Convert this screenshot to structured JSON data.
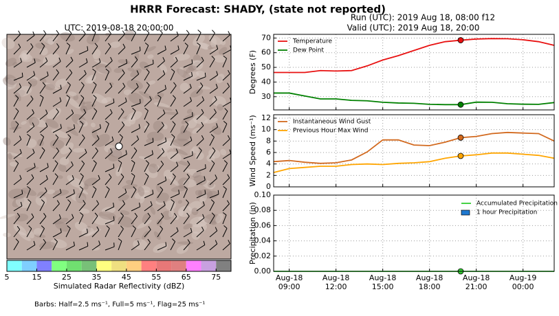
{
  "suptitle": "HRRR Forecast: SHADY, (state not reported)",
  "run": "Run (UTC): 2019 Aug 18, 08:00 f12",
  "valid": "Valid (UTC): 2019 Aug 18, 20:00",
  "map": {
    "title": "UTC: 2019-08-18 20:00:00",
    "colorbar": {
      "label": "Simulated Radar Reflectivity (dBZ)",
      "bounds": [
        5,
        10,
        15,
        20,
        25,
        30,
        35,
        40,
        45,
        50,
        55,
        60,
        65,
        70,
        75,
        80
      ],
      "colors": [
        "#80ffff",
        "#7fcfff",
        "#8080ff",
        "#80ff80",
        "#70df70",
        "#78c078",
        "#ffff80",
        "#efdf80",
        "#ffcf80",
        "#ff8080",
        "#e87878",
        "#df8080",
        "#ff80ff",
        "#c8a0e0",
        "#808080"
      ],
      "ticks": [
        5,
        15,
        25,
        35,
        45,
        55,
        65,
        75
      ]
    },
    "note": "Barbs: Half=2.5 ms⁻¹, Full=5 ms⁻¹, Flag=25 ms⁻¹"
  },
  "chart_data": [
    {
      "type": "line",
      "ylabel": "Degrees (F)",
      "legend": "upper left",
      "grid": true,
      "highlight_x": 20,
      "x": [
        8,
        9,
        10,
        11,
        12,
        13,
        14,
        15,
        16,
        17,
        18,
        19,
        20,
        21,
        22,
        23,
        24,
        25,
        26
      ],
      "xlim": [
        8,
        26
      ],
      "ylim": [
        21,
        72.5
      ],
      "yticks": [
        30,
        40,
        50,
        60,
        70
      ],
      "series": [
        {
          "name": "Temperature",
          "color": "#e81010",
          "values": [
            46.5,
            46.5,
            46.5,
            47.8,
            47.5,
            47.8,
            51,
            55,
            58,
            61.5,
            65,
            67.5,
            68.5,
            69.3,
            69.6,
            69.5,
            68.8,
            67.5,
            65
          ]
        },
        {
          "name": "Dew Point",
          "color": "#008000",
          "values": [
            32.5,
            32.5,
            30.5,
            28.5,
            28.5,
            27.5,
            27.2,
            26.2,
            25.7,
            25.5,
            24.8,
            24.6,
            24.6,
            26.3,
            26.2,
            25.2,
            24.9,
            24.8,
            26
          ]
        }
      ]
    },
    {
      "type": "line",
      "ylabel": "Wind Speed (ms⁻¹)",
      "legend": "upper left",
      "grid": true,
      "highlight_x": 20,
      "x": [
        8,
        9,
        10,
        11,
        12,
        13,
        14,
        15,
        16,
        17,
        18,
        19,
        20,
        21,
        22,
        23,
        24,
        25,
        26
      ],
      "xlim": [
        8,
        26
      ],
      "ylim": [
        0,
        12.6
      ],
      "yticks": [
        0,
        2,
        4,
        6,
        8,
        10,
        12
      ],
      "series": [
        {
          "name": "Instantaneous Wind Gust",
          "color": "#d2691e",
          "values": [
            4.4,
            4.6,
            4.3,
            4.1,
            4.2,
            4.7,
            6.1,
            8.2,
            8.2,
            7.3,
            7.2,
            7.8,
            8.6,
            8.8,
            9.3,
            9.5,
            9.4,
            9.3,
            8.0
          ]
        },
        {
          "name": "Previous Hour Max Wind",
          "color": "#ffa500",
          "values": [
            2.5,
            3.2,
            3.4,
            3.6,
            3.6,
            3.9,
            4.0,
            3.9,
            4.1,
            4.2,
            4.4,
            5.0,
            5.4,
            5.6,
            5.9,
            5.9,
            5.7,
            5.5,
            5.0
          ]
        }
      ]
    },
    {
      "type": "line",
      "ylabel": "Precipitation (in)",
      "legend": "upper right",
      "grid": true,
      "highlight_x": 20,
      "x": [
        8,
        9,
        10,
        11,
        12,
        13,
        14,
        15,
        16,
        17,
        18,
        19,
        20,
        21,
        22,
        23,
        24,
        25,
        26
      ],
      "xlim": [
        8,
        26
      ],
      "ylim": [
        0,
        0.1
      ],
      "yticks": [
        {
          "value": 0,
          "label": "0.00"
        },
        {
          "value": 0.02,
          "label": "0.02"
        },
        {
          "value": 0.04,
          "label": "0.04"
        },
        {
          "value": 0.06,
          "label": "0.06"
        },
        {
          "value": 0.08,
          "label": "0.08"
        },
        {
          "value": 0.1,
          "label": "0.10"
        }
      ],
      "xticks": [
        {
          "value": 9,
          "label": "Aug-18\n09:00"
        },
        {
          "value": 12,
          "label": "Aug-18\n12:00"
        },
        {
          "value": 15,
          "label": "Aug-18\n15:00"
        },
        {
          "value": 18,
          "label": "Aug-18\n18:00"
        },
        {
          "value": 21,
          "label": "Aug-18\n21:00"
        },
        {
          "value": 24,
          "label": "Aug-19\n00:00"
        }
      ],
      "series": [
        {
          "name": "Accumulated Precipitation",
          "color": "#32cd32",
          "values": [
            0,
            0,
            0,
            0,
            0,
            0,
            0,
            0,
            0,
            0,
            0,
            0,
            0,
            0,
            0,
            0,
            0,
            0,
            0
          ]
        },
        {
          "name": "1 hour Precipitation",
          "color": "#1e78d0",
          "kind": "bar",
          "values": [
            0,
            0,
            0,
            0,
            0,
            0,
            0,
            0,
            0,
            0,
            0,
            0,
            0,
            0,
            0,
            0,
            0,
            0,
            0
          ]
        }
      ]
    }
  ]
}
